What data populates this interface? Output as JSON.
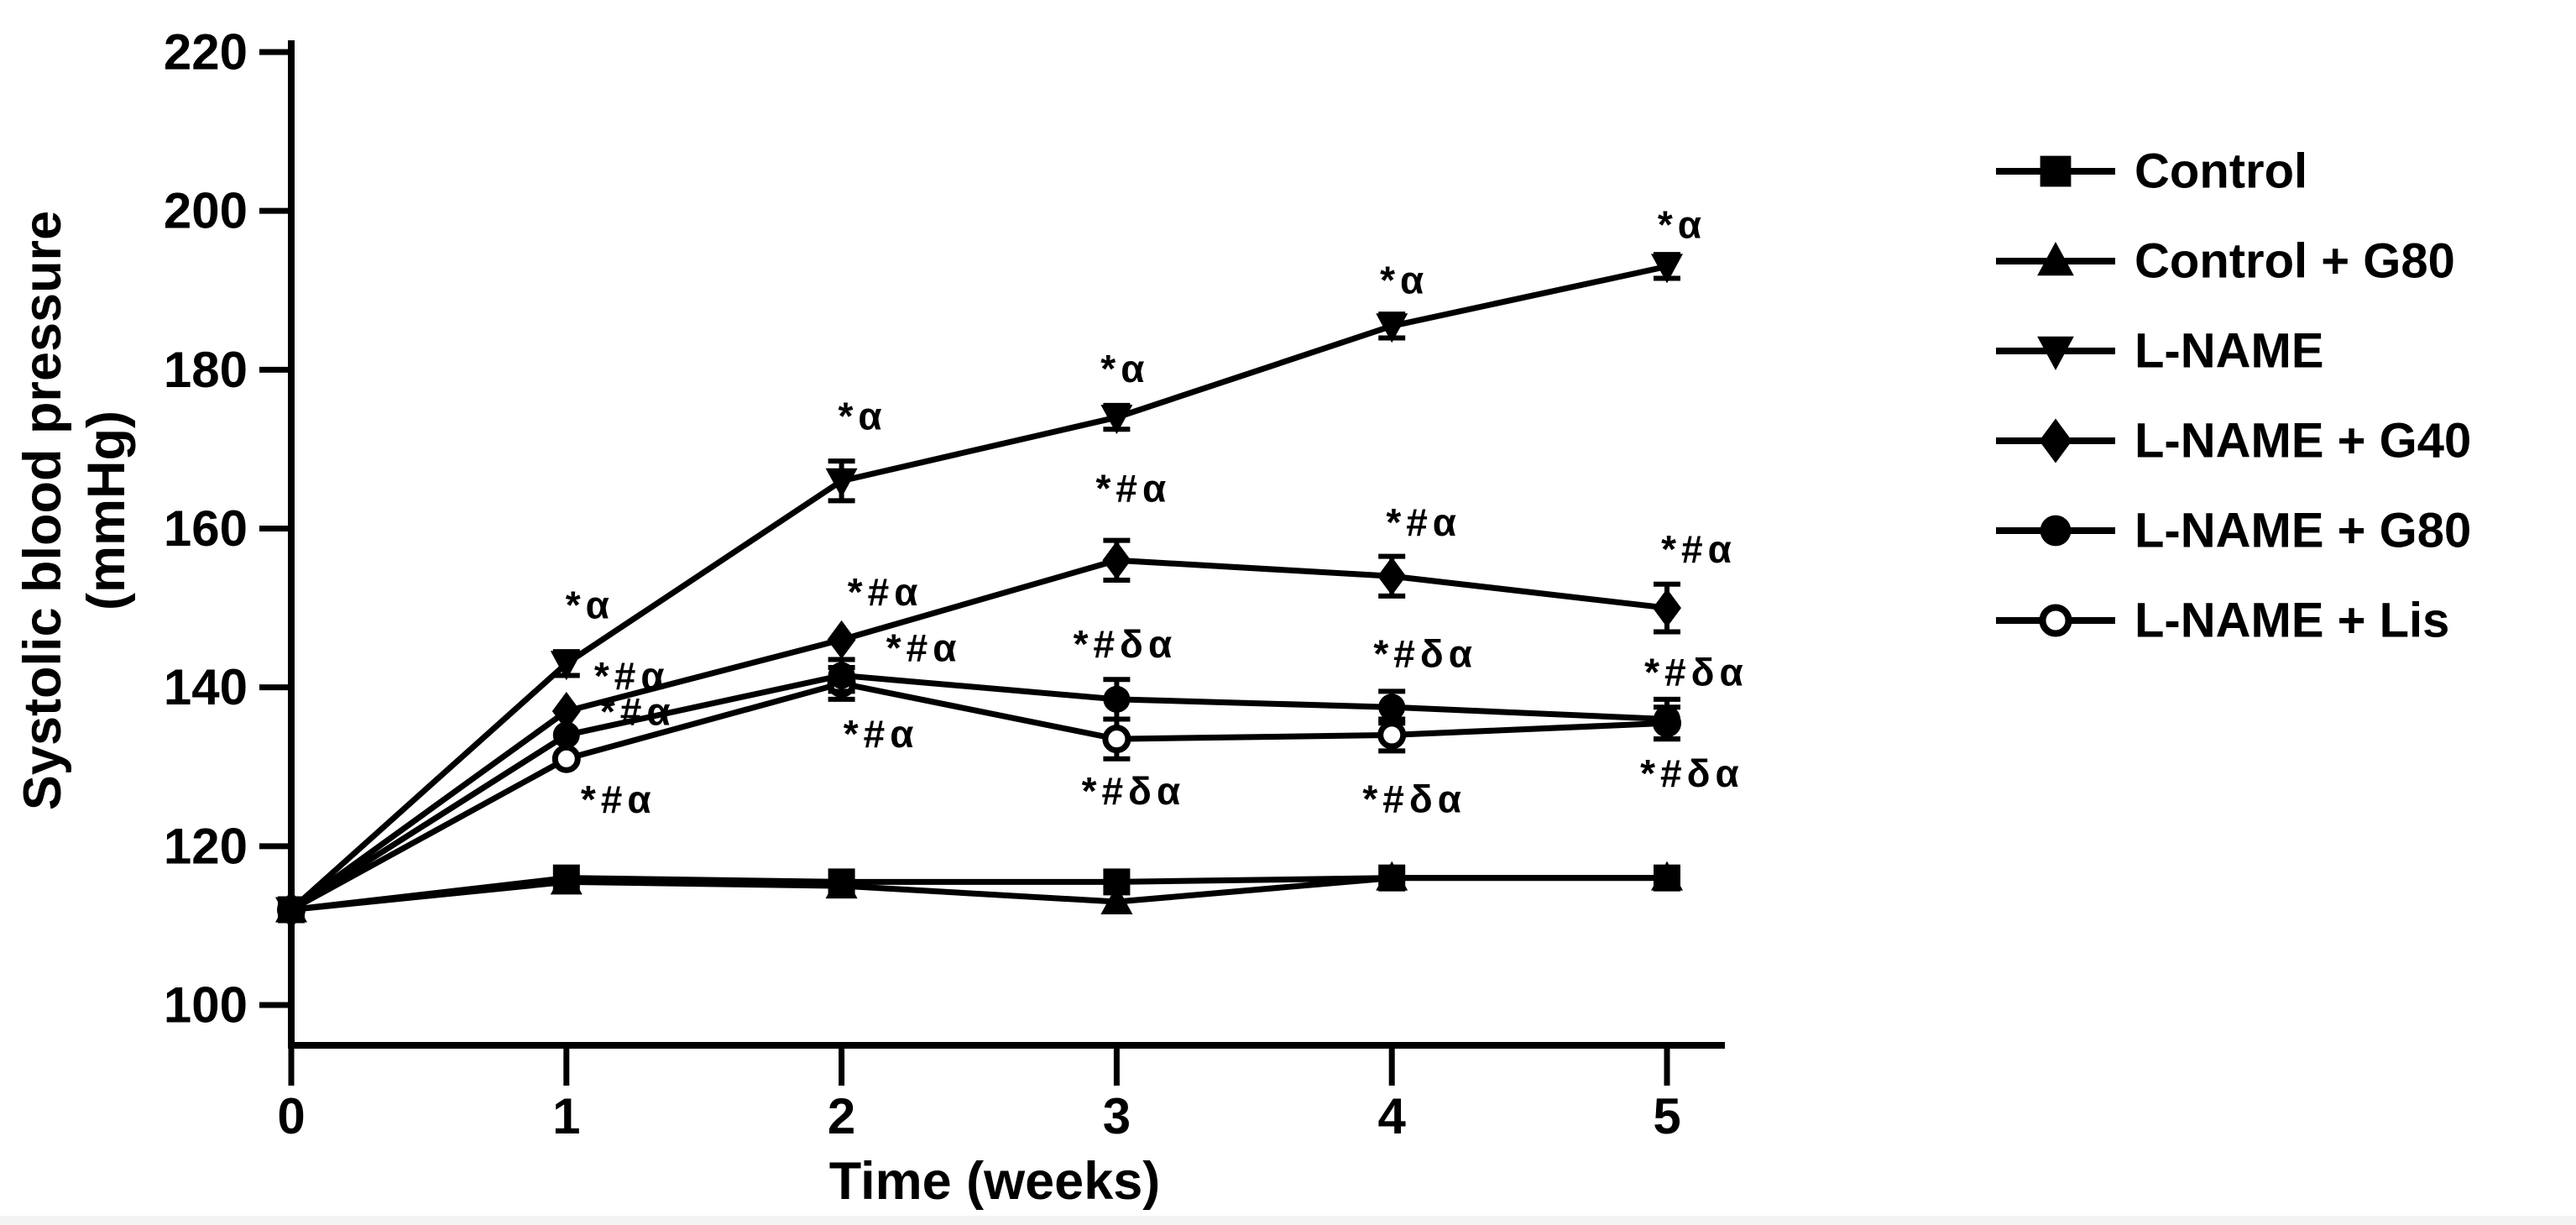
{
  "figure": {
    "background": "#ffffff",
    "bottom_strip_color": "#f3f3f3",
    "ink_color": "#000000"
  },
  "chart_data": {
    "type": "line",
    "title": "",
    "xlabel": "Time (weeks)",
    "ylabel_lines": [
      "Systolic blood pressure",
      "(mmHg)"
    ],
    "x": [
      0,
      1,
      2,
      3,
      4,
      5
    ],
    "xlim": [
      0,
      5
    ],
    "ylim": [
      100,
      220
    ],
    "yticks": [
      220,
      200,
      180,
      160,
      140,
      120,
      100
    ],
    "xticks": [
      0,
      1,
      2,
      3,
      4,
      5
    ],
    "grid": false,
    "legend_position": "right",
    "axis_color": "#000000",
    "series": [
      {
        "name": "Control",
        "marker": "square",
        "values": [
          112,
          116,
          115.5,
          115.5,
          116,
          116
        ],
        "err": [
          0,
          0,
          0,
          0,
          0,
          0
        ],
        "annotations": []
      },
      {
        "name": "Control + G80",
        "marker": "triangle-up",
        "values": [
          112,
          115.5,
          115,
          113,
          116,
          116
        ],
        "err": [
          0,
          0,
          0,
          0,
          0,
          0
        ],
        "annotations": []
      },
      {
        "name": "L-NAME",
        "marker": "triangle-down",
        "values": [
          112,
          143,
          166,
          174,
          185.5,
          193
        ],
        "err": [
          0,
          1.5,
          2.5,
          1.5,
          1.5,
          1.5
        ],
        "annotations": [
          {
            "week": 1,
            "text": "*α",
            "dx": 28,
            "dy": -70
          },
          {
            "week": 2,
            "text": "*α",
            "dx": 25,
            "dy": -77
          },
          {
            "week": 3,
            "text": "*α",
            "dx": 10,
            "dy": -58
          },
          {
            "week": 4,
            "text": "*α",
            "dx": 15,
            "dy": -55
          },
          {
            "week": 5,
            "text": "*α",
            "dx": 18,
            "dy": -50
          }
        ]
      },
      {
        "name": "L-NAME + G40",
        "marker": "diamond",
        "values": [
          112,
          137,
          146,
          156,
          154,
          150
        ],
        "err": [
          0,
          0,
          0,
          2.5,
          2.5,
          3
        ],
        "annotations": [
          {
            "week": 1,
            "text": "*#α",
            "dx": 78,
            "dy": -42
          },
          {
            "week": 2,
            "text": "*#α",
            "dx": 52,
            "dy": -57
          },
          {
            "week": 3,
            "text": "*#α",
            "dx": 20,
            "dy": -86
          },
          {
            "week": 4,
            "text": "*#α",
            "dx": 38,
            "dy": -64
          },
          {
            "week": 5,
            "text": "*#α",
            "dx": 38,
            "dy": -70
          }
        ]
      },
      {
        "name": "L-NAME + G80",
        "marker": "circle",
        "values": [
          112,
          134,
          141.5,
          138.5,
          137.5,
          136
        ],
        "err": [
          0,
          0,
          2,
          2.5,
          2,
          2.5
        ],
        "annotations": [
          {
            "week": 1,
            "text": "*#α",
            "dx": 85,
            "dy": -28
          },
          {
            "week": 2,
            "text": "*#α",
            "dx": 98,
            "dy": -33
          },
          {
            "week": 3,
            "text": "*#δα",
            "dx": 10,
            "dy": -66
          },
          {
            "week": 4,
            "text": "*#δα",
            "dx": 40,
            "dy": -64
          },
          {
            "week": 5,
            "text": "*#δα",
            "dx": 35,
            "dy": -56
          }
        ]
      },
      {
        "name": "L-NAME + Lis",
        "marker": "circle-open",
        "values": [
          112,
          131,
          140.5,
          133.5,
          134,
          135.5
        ],
        "err": [
          0,
          0,
          2,
          2.5,
          2,
          2
        ],
        "annotations": [
          {
            "week": 1,
            "text": "*#α",
            "dx": 62,
            "dy": 48
          },
          {
            "week": 2,
            "text": "*#α",
            "dx": 47,
            "dy": 60
          },
          {
            "week": 3,
            "text": "*#δα",
            "dx": 20,
            "dy": 62
          },
          {
            "week": 4,
            "text": "*#δα",
            "dx": 27,
            "dy": 76
          },
          {
            "week": 5,
            "text": "*#δα",
            "dx": 30,
            "dy": 60
          }
        ]
      }
    ]
  }
}
